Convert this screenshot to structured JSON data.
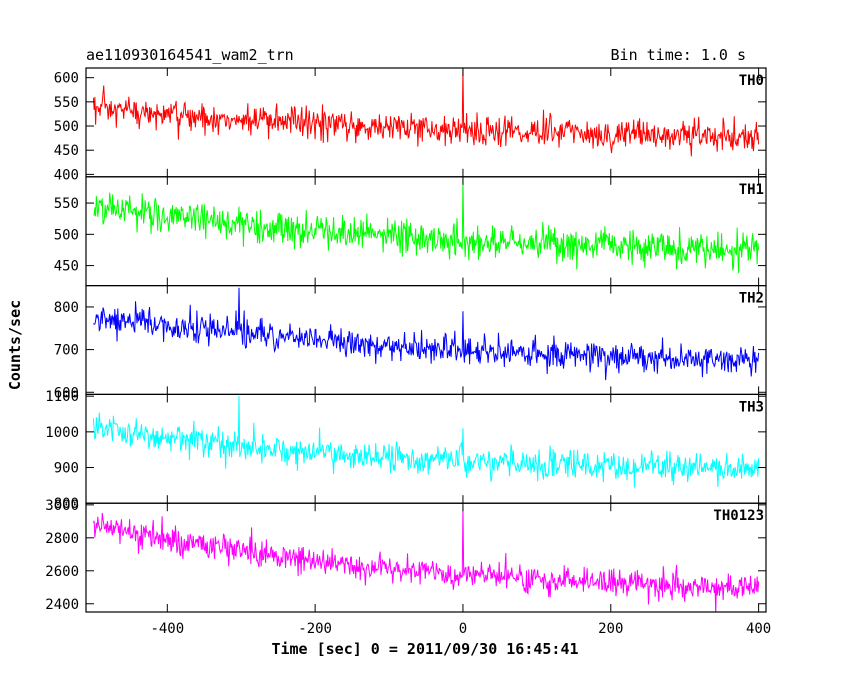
{
  "header": {
    "title": "ae110930164541_wam2_trn",
    "bin_time": "Bin time: 1.0 s"
  },
  "chart_data": {
    "type": "line",
    "xlabel": "Time [sec] 0 = 2011/09/30 16:45:41",
    "ylabel": "Counts/sec",
    "xlim": [
      -510,
      410
    ],
    "xticks": [
      -400,
      -200,
      0,
      200,
      400
    ],
    "x_sampling": {
      "start": -500,
      "end": 400,
      "step": 1
    },
    "panels": [
      {
        "name": "TH0",
        "color": "#ff0000",
        "ylim": [
          395,
          620
        ],
        "yticks": [
          400,
          450,
          500,
          550,
          600
        ],
        "trend": {
          "x": [
            -500,
            -400,
            -300,
            -200,
            -100,
            0,
            100,
            200,
            300,
            400
          ],
          "y": [
            535,
            522,
            512,
            505,
            498,
            492,
            488,
            484,
            481,
            475
          ]
        },
        "noise_amplitude": 30,
        "spikes": [
          {
            "x": 0,
            "y": 620
          }
        ]
      },
      {
        "name": "TH1",
        "color": "#00ff00",
        "ylim": [
          418,
          592
        ],
        "yticks": [
          450,
          500,
          550
        ],
        "trend": {
          "x": [
            -500,
            -400,
            -300,
            -200,
            -100,
            0,
            100,
            200,
            300,
            400
          ],
          "y": [
            545,
            528,
            515,
            505,
            497,
            490,
            486,
            482,
            478,
            474
          ]
        },
        "noise_amplitude": 26,
        "spikes": [
          {
            "x": 0,
            "y": 590
          }
        ]
      },
      {
        "name": "TH2",
        "color": "#0000ff",
        "ylim": [
          595,
          850
        ],
        "yticks": [
          600,
          700,
          800
        ],
        "trend": {
          "x": [
            -500,
            -400,
            -300,
            -200,
            -100,
            0,
            100,
            200,
            300,
            400
          ],
          "y": [
            775,
            757,
            738,
            722,
            708,
            697,
            690,
            684,
            679,
            675
          ]
        },
        "noise_amplitude": 30,
        "spikes": [
          {
            "x": -303,
            "y": 845
          },
          {
            "x": 0,
            "y": 790
          }
        ]
      },
      {
        "name": "TH3",
        "color": "#00ffff",
        "ylim": [
          800,
          1105
        ],
        "yticks": [
          800,
          900,
          1000,
          1100
        ],
        "trend": {
          "x": [
            -500,
            -400,
            -300,
            -200,
            -100,
            0,
            100,
            200,
            300,
            400
          ],
          "y": [
            1015,
            985,
            960,
            942,
            928,
            918,
            910,
            905,
            900,
            895
          ]
        },
        "noise_amplitude": 38,
        "spikes": [
          {
            "x": -303,
            "y": 1100
          },
          {
            "x": 0,
            "y": 1010
          }
        ]
      },
      {
        "name": "TH0123",
        "color": "#ff00ff",
        "ylim": [
          2350,
          3010
        ],
        "yticks": [
          2400,
          2600,
          2800,
          3000
        ],
        "trend": {
          "x": [
            -500,
            -400,
            -300,
            -200,
            -100,
            0,
            100,
            200,
            300,
            400
          ],
          "y": [
            2880,
            2790,
            2720,
            2660,
            2610,
            2570,
            2545,
            2525,
            2510,
            2495
          ]
        },
        "noise_amplitude": 75,
        "spikes": [
          {
            "x": 0,
            "y": 2990
          }
        ]
      }
    ]
  }
}
